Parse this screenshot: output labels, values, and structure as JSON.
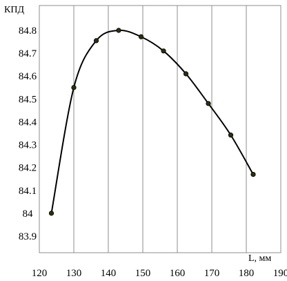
{
  "chart_data": {
    "type": "line",
    "ylabel": "КПД",
    "xlabel": "L, мм",
    "xlim": [
      120,
      190
    ],
    "ylim": [
      83.9,
      84.8
    ],
    "x_ticks": [
      "120",
      "130",
      "140",
      "150",
      "160",
      "170",
      "180",
      "190"
    ],
    "y_ticks": [
      "83.9",
      "84",
      "84.1",
      "84.2",
      "84.3",
      "84.4",
      "84.5",
      "84.6",
      "84.7",
      "84.8"
    ],
    "grid": "vertical",
    "series": [
      {
        "x": [
          123.5,
          130,
          136.5,
          143,
          149.5,
          156,
          162.5,
          169,
          175.5,
          182
        ],
        "y": [
          84.0,
          84.55,
          84.755,
          84.8,
          84.772,
          84.71,
          84.61,
          84.48,
          84.342,
          84.17
        ]
      }
    ],
    "colors": {
      "line": "#000000",
      "marker": "#2e2e10",
      "grid": "#8c8c8c"
    }
  }
}
